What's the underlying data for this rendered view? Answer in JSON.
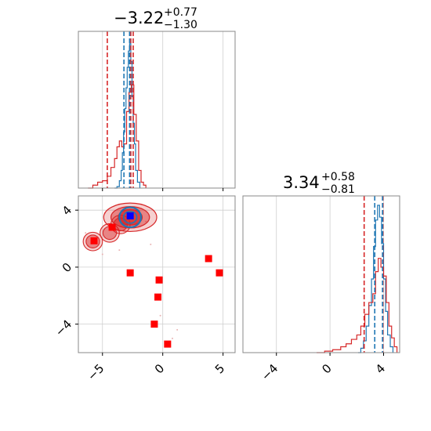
{
  "colors": {
    "blue": "#1f77b4",
    "red": "#d62728",
    "marker_red": "#ff0000",
    "marker_blue": "#0000ff",
    "grid": "#cfcfcf",
    "frame": "#888888"
  },
  "chart_data": [
    {
      "type": "histogram",
      "panel": "top-left",
      "title": {
        "main": "−3.22",
        "sup": "+0.77",
        "sub": "−1.30"
      },
      "xlim": [
        -7,
        6
      ],
      "x_grid": [
        -5,
        0,
        5
      ],
      "vlines": {
        "red": [
          -4.6,
          -2.65,
          -2.45
        ],
        "blue": [
          -3.22,
          -2.75
        ]
      },
      "series": [
        {
          "color": "blue",
          "x": [
            -4.0,
            -3.8,
            -3.6,
            -3.45,
            -3.35,
            -3.25,
            -3.15,
            -3.05,
            -2.95,
            -2.85,
            -2.75,
            -2.65,
            -2.55,
            -2.45,
            -2.35,
            -2.25,
            -2.1,
            -1.9
          ],
          "density": [
            0.0,
            0.01,
            0.05,
            0.12,
            0.24,
            0.38,
            0.54,
            0.68,
            0.82,
            0.93,
            0.98,
            0.86,
            0.62,
            0.44,
            0.3,
            0.12,
            0.04,
            0.0
          ]
        },
        {
          "color": "red",
          "x": [
            -6.2,
            -5.8,
            -5.4,
            -5.0,
            -4.6,
            -4.3,
            -4.0,
            -3.8,
            -3.6,
            -3.4,
            -3.2,
            -3.0,
            -2.8,
            -2.6,
            -2.4,
            -2.2,
            -2.0,
            -1.8,
            -1.6,
            -1.4
          ],
          "density": [
            0.0,
            0.02,
            0.04,
            0.05,
            0.08,
            0.14,
            0.2,
            0.28,
            0.32,
            0.28,
            0.3,
            0.52,
            0.65,
            0.7,
            0.5,
            0.32,
            0.12,
            0.04,
            0.02,
            0.0
          ]
        }
      ]
    },
    {
      "type": "histogram",
      "panel": "bottom-right",
      "title": {
        "main": "3.34",
        "sup": "+0.58",
        "sub": "−0.81"
      },
      "xlim": [
        -6.5,
        5.2
      ],
      "x_ticks": [
        "−4",
        "0",
        "4"
      ],
      "x_tick_values": [
        -4,
        0,
        4
      ],
      "vlines": {
        "red": [
          2.55,
          3.95
        ],
        "blue": [
          3.34,
          3.92
        ]
      },
      "series": [
        {
          "color": "blue",
          "x": [
            2.1,
            2.3,
            2.5,
            2.7,
            2.9,
            3.1,
            3.25,
            3.4,
            3.55,
            3.7,
            3.85,
            4.0,
            4.15,
            4.3,
            4.5,
            4.7
          ],
          "density": [
            0.0,
            0.03,
            0.08,
            0.18,
            0.32,
            0.5,
            0.72,
            0.9,
            1.0,
            0.92,
            0.74,
            0.5,
            0.28,
            0.12,
            0.04,
            0.0
          ]
        },
        {
          "color": "red",
          "x": [
            -1.0,
            -0.4,
            0.2,
            0.8,
            1.2,
            1.6,
            2.0,
            2.3,
            2.6,
            2.9,
            3.2,
            3.4,
            3.6,
            3.8,
            4.0,
            4.2,
            4.4,
            4.6,
            4.8,
            5.0
          ],
          "density": [
            0.0,
            0.01,
            0.02,
            0.04,
            0.06,
            0.09,
            0.12,
            0.18,
            0.26,
            0.34,
            0.4,
            0.55,
            0.64,
            0.58,
            0.52,
            0.34,
            0.18,
            0.1,
            0.04,
            0.0
          ]
        }
      ]
    },
    {
      "type": "scatter",
      "panel": "bottom-left",
      "xlim": [
        -7,
        6
      ],
      "ylim": [
        -6,
        5
      ],
      "x_ticks": [
        "−5",
        "0",
        "5"
      ],
      "x_tick_values": [
        -5,
        0,
        5
      ],
      "y_ticks": [
        "−4",
        "0",
        "4"
      ],
      "y_tick_values": [
        -4,
        0,
        4
      ],
      "contours": {
        "center": [
          -2.7,
          3.5
        ],
        "levels": [
          {
            "rx": 2.2,
            "ry": 1.0,
            "fill_opacity": 0.22
          },
          {
            "rx": 1.6,
            "ry": 0.75,
            "fill_opacity": 0.45
          },
          {
            "rx": 1.0,
            "ry": 0.55,
            "fill_opacity": 0.75
          }
        ],
        "tail": [
          [
            -5.8,
            1.8
          ],
          [
            -4.4,
            2.4
          ],
          [
            -3.5,
            3.0
          ]
        ]
      },
      "red_markers": [
        [
          -5.7,
          1.85
        ],
        [
          -4.2,
          2.8
        ],
        [
          -2.7,
          -0.4
        ],
        [
          -0.3,
          -0.9
        ],
        [
          -0.4,
          -2.1
        ],
        [
          -0.7,
          -4.0
        ],
        [
          0.4,
          -5.4
        ],
        [
          3.8,
          0.6
        ],
        [
          4.7,
          -0.4
        ]
      ],
      "blue_marker": [
        -2.7,
        3.6
      ]
    }
  ]
}
